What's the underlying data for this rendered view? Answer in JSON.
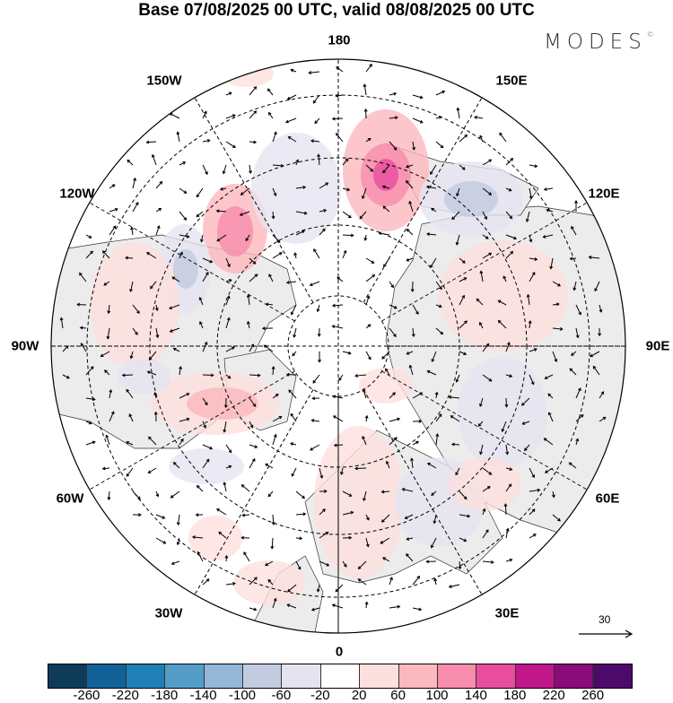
{
  "title": "Base 07/08/2025 00 UTC, valid 08/08/2025 00 UTC",
  "logo": "MODES",
  "logo_mark": "©",
  "longitude_labels": {
    "top": "180",
    "bottom": "0",
    "left": "90W",
    "right": "90E",
    "upper_left": "150W",
    "upper_right": "150E",
    "mid_upper_left": "120W",
    "mid_upper_right": "120E",
    "mid_lower_left": "60W",
    "mid_lower_right": "60E",
    "lower_left": "30W",
    "lower_right": "30E"
  },
  "reference_vector": "30",
  "colorbar": {
    "colors": [
      "#0d3b5a",
      "#106299",
      "#1f80b8",
      "#539dc8",
      "#93b7d9",
      "#c3cbe0",
      "#e6e3f0",
      "#ffffff",
      "#fde0dd",
      "#fbb8bd",
      "#f88cad",
      "#e74e9e",
      "#c0178b",
      "#8a0b7a",
      "#4e0a6a"
    ],
    "ticks": [
      "-260",
      "-220",
      "-180",
      "-140",
      "-100",
      "-60",
      "-20",
      "20",
      "60",
      "100",
      "140",
      "180",
      "220",
      "260"
    ]
  }
}
